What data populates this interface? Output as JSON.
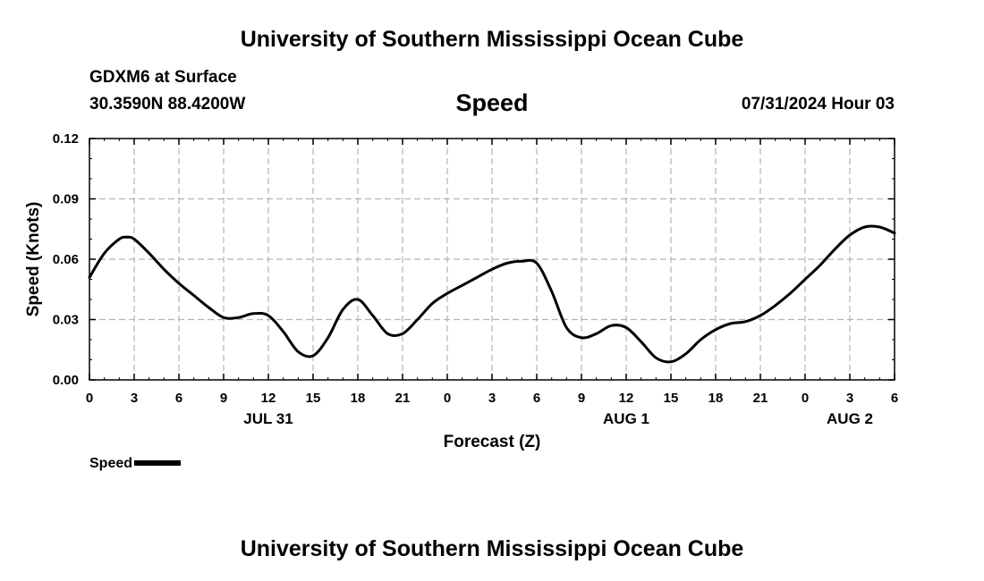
{
  "header": {
    "title": "University of Southern Mississippi Ocean Cube",
    "station": "GDXM6 at Surface",
    "coords": "30.3590N  88.4200W",
    "parameter": "Speed",
    "datetime": "07/31/2024 Hour 03"
  },
  "footer": {
    "title": "University of Southern Mississippi Ocean Cube"
  },
  "legend": {
    "label": "Speed"
  },
  "colors": {
    "line": "#000000",
    "grid": "#b4b4b4",
    "text": "#000000",
    "background": "#ffffff"
  },
  "chart_data": {
    "type": "line",
    "title": "Speed",
    "xlabel": "Forecast (Z)",
    "ylabel": "Speed (Knots)",
    "xlim": [
      0,
      54
    ],
    "ylim": [
      0,
      0.12
    ],
    "x_ticks": [
      0,
      3,
      6,
      9,
      12,
      15,
      18,
      21,
      24,
      27,
      30,
      33,
      36,
      39,
      42,
      45,
      48,
      51,
      54
    ],
    "x_tick_labels": [
      "0",
      "3",
      "6",
      "9",
      "12",
      "15",
      "18",
      "21",
      "0",
      "3",
      "6",
      "9",
      "12",
      "15",
      "18",
      "21",
      "0",
      "3",
      "6"
    ],
    "y_ticks": [
      0,
      0.03,
      0.06,
      0.09,
      0.12
    ],
    "y_tick_labels": [
      "0.00",
      "0.03",
      "0.06",
      "0.09",
      "0.12"
    ],
    "day_labels": [
      {
        "x": 12,
        "label": "JUL 31"
      },
      {
        "x": 36,
        "label": "AUG 1"
      },
      {
        "x": 51,
        "label": "AUG 2"
      }
    ],
    "grid": true,
    "series": [
      {
        "name": "Speed",
        "x": [
          0,
          1,
          2,
          2.5,
          3,
          4,
          5,
          6,
          7,
          8,
          9,
          10,
          11,
          12,
          13,
          14,
          15,
          16,
          17,
          18,
          19,
          20,
          21,
          22,
          23,
          24,
          25,
          26,
          27,
          28,
          29,
          30,
          31,
          32,
          33,
          34,
          35,
          36,
          37,
          38,
          39,
          40,
          41,
          42,
          43,
          44,
          45,
          46,
          47,
          48,
          49,
          50,
          51,
          52,
          53,
          54
        ],
        "values": [
          0.051,
          0.063,
          0.07,
          0.071,
          0.07,
          0.063,
          0.055,
          0.048,
          0.042,
          0.036,
          0.031,
          0.031,
          0.033,
          0.032,
          0.024,
          0.014,
          0.012,
          0.021,
          0.035,
          0.04,
          0.032,
          0.023,
          0.023,
          0.03,
          0.038,
          0.043,
          0.047,
          0.051,
          0.055,
          0.058,
          0.059,
          0.058,
          0.044,
          0.026,
          0.021,
          0.023,
          0.027,
          0.026,
          0.019,
          0.011,
          0.009,
          0.013,
          0.02,
          0.025,
          0.028,
          0.029,
          0.032,
          0.037,
          0.043,
          0.05,
          0.057,
          0.065,
          0.072,
          0.076,
          0.076,
          0.073
        ]
      }
    ]
  }
}
